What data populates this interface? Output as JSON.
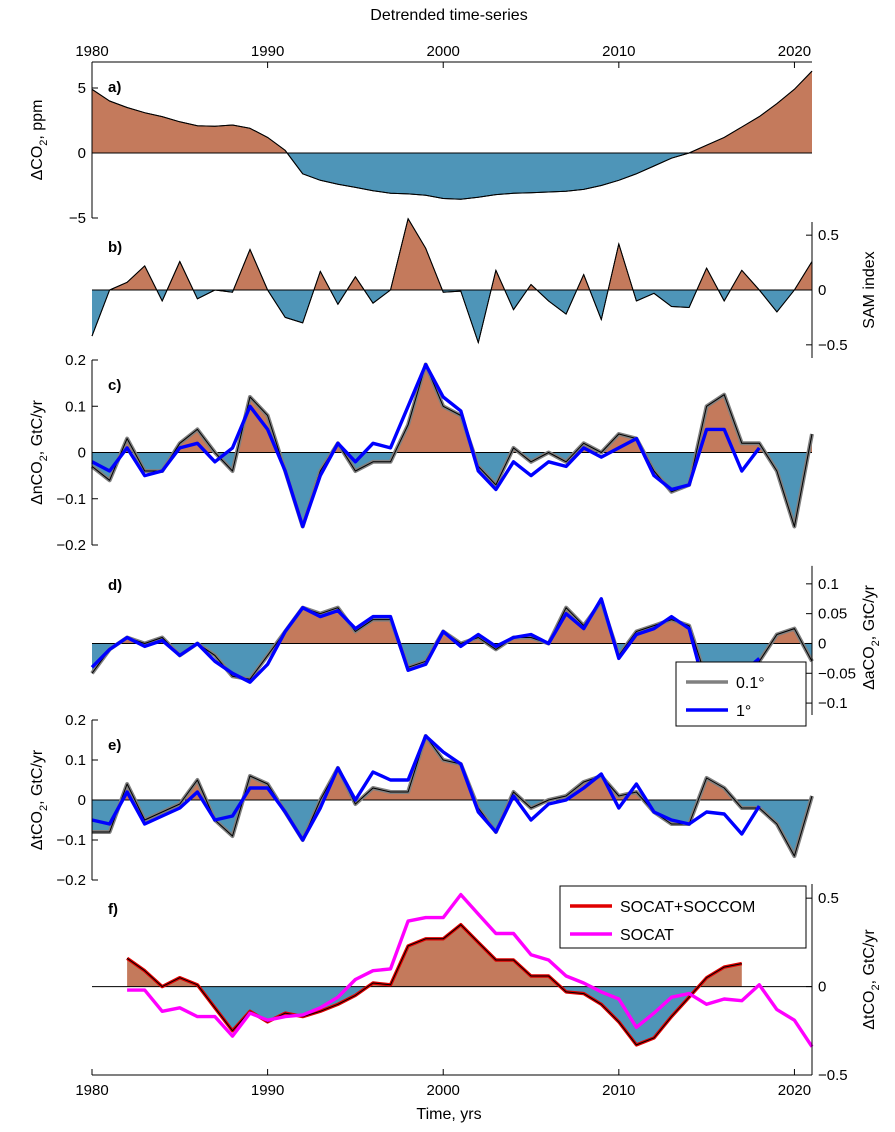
{
  "figure": {
    "title": "Detrended time-series",
    "xlabel": "Time, yrs"
  },
  "colors": {
    "positive": "#C47A5C",
    "negative": "#4E95B8",
    "blue": "#0000FF",
    "gray": "#808080",
    "red": "#E00000",
    "magenta": "#FF00FF",
    "black": "#000000"
  },
  "legends": {
    "res": [
      {
        "label": "0.1°",
        "color": "#808080"
      },
      {
        "label": "1°",
        "color": "#0000FF"
      }
    ],
    "socat": [
      {
        "label": "SOCAT+SOCCOM",
        "color": "#E00000"
      },
      {
        "label": "SOCAT",
        "color": "#FF00FF"
      }
    ]
  },
  "chart_data": [
    {
      "type": "area",
      "label": "a)",
      "ylabel_main": "ΔCO",
      "ylabel_sub": "2",
      "ylabel_tail": ", ppm",
      "yaxis_side": "left",
      "ylim": [
        -5,
        7
      ],
      "yticks": [
        5,
        0,
        -5
      ],
      "ytick_labels": [
        "5",
        "0",
        "−5"
      ],
      "xlim": [
        1980,
        2021
      ],
      "xticks": [
        1980,
        1990,
        2000,
        2010,
        2020
      ],
      "xtick_labels_top": [
        "1980",
        "1990",
        "2000",
        "2010",
        "2020"
      ],
      "series": [
        {
          "x": [
            1980,
            1981,
            1982,
            1983,
            1984,
            1985,
            1986,
            1987,
            1988,
            1989,
            1990,
            1991,
            1992,
            1993,
            1994,
            1995,
            1996,
            1997,
            1998,
            1999,
            2000,
            2001,
            2002,
            2003,
            2004,
            2005,
            2006,
            2007,
            2008,
            2009,
            2010,
            2011,
            2012,
            2013,
            2014,
            2015,
            2016,
            2017,
            2018,
            2019,
            2020,
            2021
          ],
          "values": [
            4.9,
            4.0,
            3.5,
            3.1,
            2.8,
            2.4,
            2.1,
            2.05,
            2.15,
            1.9,
            1.2,
            0.2,
            -1.6,
            -2.1,
            -2.4,
            -2.65,
            -2.9,
            -3.1,
            -3.15,
            -3.25,
            -3.5,
            -3.55,
            -3.4,
            -3.2,
            -3.1,
            -3.05,
            -3.0,
            -2.95,
            -2.8,
            -2.5,
            -2.1,
            -1.6,
            -1.0,
            -0.4,
            0.0,
            0.6,
            1.2,
            2.0,
            2.8,
            3.8,
            4.9,
            6.3
          ]
        }
      ]
    },
    {
      "type": "area",
      "label": "b)",
      "ylabel_main": "SAM index",
      "ylabel_sub": "",
      "ylabel_tail": "",
      "yaxis_side": "right",
      "ylim": [
        -0.62,
        0.62
      ],
      "yticks": [
        0.5,
        0,
        -0.5
      ],
      "ytick_labels": [
        "0.5",
        "0",
        "−0.5"
      ],
      "xlim": [
        1980,
        2021
      ],
      "series": [
        {
          "x": [
            1980,
            1981,
            1982,
            1983,
            1984,
            1985,
            1986,
            1987,
            1988,
            1989,
            1990,
            1991,
            1992,
            1993,
            1994,
            1995,
            1996,
            1997,
            1998,
            1999,
            2000,
            2001,
            2002,
            2003,
            2004,
            2005,
            2006,
            2007,
            2008,
            2009,
            2010,
            2011,
            2012,
            2013,
            2014,
            2015,
            2016,
            2017,
            2018,
            2019,
            2020,
            2021
          ],
          "values": [
            -0.42,
            0.0,
            0.07,
            0.22,
            -0.1,
            0.26,
            -0.08,
            0.0,
            -0.02,
            0.37,
            0.0,
            -0.25,
            -0.3,
            0.17,
            -0.13,
            0.12,
            -0.12,
            0.0,
            0.65,
            0.38,
            -0.02,
            -0.01,
            -0.48,
            0.18,
            -0.18,
            0.05,
            -0.1,
            -0.22,
            0.14,
            -0.27,
            0.42,
            -0.1,
            -0.03,
            -0.15,
            -0.16,
            0.2,
            -0.1,
            0.18,
            0.0,
            -0.2,
            0.0,
            0.26
          ]
        }
      ]
    },
    {
      "type": "area",
      "label": "c)",
      "ylabel_main": "ΔnCO",
      "ylabel_sub": "2",
      "ylabel_tail": ", GtC/yr",
      "yaxis_side": "left",
      "ylim": [
        -0.2,
        0.2
      ],
      "yticks": [
        0.2,
        0.1,
        0,
        -0.1,
        -0.2
      ],
      "ytick_labels": [
        "0.2",
        "0.1",
        "0",
        "−0.1",
        "−0.2"
      ],
      "xlim": [
        1980,
        2021
      ],
      "series": [
        {
          "name": "0.1°",
          "x": [
            1980,
            1981,
            1982,
            1983,
            1984,
            1985,
            1986,
            1987,
            1988,
            1989,
            1990,
            1991,
            1992,
            1993,
            1994,
            1995,
            1996,
            1997,
            1998,
            1999,
            2000,
            2001,
            2002,
            2003,
            2004,
            2005,
            2006,
            2007,
            2008,
            2009,
            2010,
            2011,
            2012,
            2013,
            2014,
            2015,
            2016,
            2017,
            2018,
            2019,
            2020,
            2021
          ],
          "values": [
            -0.03,
            -0.06,
            0.03,
            -0.04,
            -0.04,
            0.02,
            0.05,
            0.0,
            -0.04,
            0.12,
            0.08,
            -0.04,
            -0.16,
            -0.04,
            0.02,
            -0.04,
            -0.02,
            -0.02,
            0.06,
            0.19,
            0.1,
            0.08,
            -0.03,
            -0.07,
            0.01,
            -0.02,
            0.0,
            -0.02,
            0.02,
            0.0,
            0.04,
            0.03,
            -0.04,
            -0.085,
            -0.07,
            0.1,
            0.125,
            0.02,
            0.02,
            -0.04,
            -0.16,
            0.04
          ]
        },
        {
          "name": "1°",
          "x": [
            1980,
            1981,
            1982,
            1983,
            1984,
            1985,
            1986,
            1987,
            1988,
            1989,
            1990,
            1991,
            1992,
            1993,
            1994,
            1995,
            1996,
            1997,
            1998,
            1999,
            2000,
            2001,
            2002,
            2003,
            2004,
            2005,
            2006,
            2007,
            2008,
            2009,
            2010,
            2011,
            2012,
            2013,
            2014,
            2015,
            2016,
            2017,
            2018
          ],
          "values": [
            -0.02,
            -0.04,
            0.01,
            -0.05,
            -0.04,
            0.01,
            0.02,
            -0.02,
            0.01,
            0.1,
            0.05,
            -0.04,
            -0.16,
            -0.05,
            0.02,
            -0.02,
            0.02,
            0.01,
            0.1,
            0.19,
            0.12,
            0.09,
            -0.04,
            -0.08,
            -0.02,
            -0.05,
            -0.02,
            -0.03,
            0.01,
            -0.01,
            0.01,
            0.03,
            -0.05,
            -0.08,
            -0.07,
            0.05,
            0.05,
            -0.04,
            0.01
          ]
        }
      ]
    },
    {
      "type": "area",
      "label": "d)",
      "ylabel_main": "ΔaCO",
      "ylabel_sub": "2",
      "ylabel_tail": ", GtC/yr",
      "yaxis_side": "right",
      "ylim": [
        -0.12,
        0.14
      ],
      "yticks": [
        0.1,
        0.05,
        0,
        -0.05,
        -0.1
      ],
      "ytick_labels": [
        "0.1",
        "0.05",
        "0",
        "−0.05",
        "−0.1"
      ],
      "xlim": [
        1980,
        2021
      ],
      "series": [
        {
          "name": "0.1°",
          "x": [
            1980,
            1981,
            1982,
            1983,
            1984,
            1985,
            1986,
            1987,
            1988,
            1989,
            1990,
            1991,
            1992,
            1993,
            1994,
            1995,
            1996,
            1997,
            1998,
            1999,
            2000,
            2001,
            2002,
            2003,
            2004,
            2005,
            2006,
            2007,
            2008,
            2009,
            2010,
            2011,
            2012,
            2013,
            2014,
            2015,
            2016,
            2017,
            2018,
            2019,
            2020,
            2021
          ],
          "values": [
            -0.05,
            -0.01,
            0.01,
            0.0,
            0.01,
            -0.02,
            0.0,
            -0.02,
            -0.055,
            -0.06,
            -0.02,
            0.02,
            0.06,
            0.05,
            0.06,
            0.02,
            0.04,
            0.04,
            -0.04,
            -0.03,
            0.02,
            0.0,
            0.01,
            -0.01,
            0.01,
            0.01,
            0.0,
            0.06,
            0.03,
            0.07,
            -0.02,
            0.02,
            0.03,
            0.04,
            0.03,
            -0.06,
            -0.105,
            -0.07,
            -0.03,
            0.015,
            0.025,
            -0.03
          ]
        },
        {
          "name": "1°",
          "x": [
            1980,
            1981,
            1982,
            1983,
            1984,
            1985,
            1986,
            1987,
            1988,
            1989,
            1990,
            1991,
            1992,
            1993,
            1994,
            1995,
            1996,
            1997,
            1998,
            1999,
            2000,
            2001,
            2002,
            2003,
            2004,
            2005,
            2006,
            2007,
            2008,
            2009,
            2010,
            2011,
            2012,
            2013,
            2014,
            2015,
            2016,
            2017,
            2018
          ],
          "values": [
            -0.04,
            -0.01,
            0.01,
            -0.005,
            0.005,
            -0.02,
            0.0,
            -0.03,
            -0.05,
            -0.065,
            -0.035,
            0.02,
            0.06,
            0.045,
            0.055,
            0.025,
            0.045,
            0.045,
            -0.045,
            -0.035,
            0.02,
            -0.005,
            0.015,
            -0.005,
            0.01,
            0.015,
            0.0,
            0.05,
            0.025,
            0.075,
            -0.025,
            0.015,
            0.025,
            0.045,
            0.025,
            -0.085,
            -0.09,
            -0.05,
            -0.025
          ]
        }
      ]
    },
    {
      "type": "area",
      "label": "e)",
      "ylabel_main": "ΔtCO",
      "ylabel_sub": "2",
      "ylabel_tail": ", GtC/yr",
      "yaxis_side": "left",
      "ylim": [
        -0.2,
        0.2
      ],
      "yticks": [
        0.2,
        0.1,
        0,
        -0.1,
        -0.2
      ],
      "ytick_labels": [
        "0.2",
        "0.1",
        "0",
        "−0.1",
        "−0.2"
      ],
      "xlim": [
        1980,
        2021
      ],
      "series": [
        {
          "name": "0.1°",
          "x": [
            1980,
            1981,
            1982,
            1983,
            1984,
            1985,
            1986,
            1987,
            1988,
            1989,
            1990,
            1991,
            1992,
            1993,
            1994,
            1995,
            1996,
            1997,
            1998,
            1999,
            2000,
            2001,
            2002,
            2003,
            2004,
            2005,
            2006,
            2007,
            2008,
            2009,
            2010,
            2011,
            2012,
            2013,
            2014,
            2015,
            2016,
            2017,
            2018,
            2019,
            2020,
            2021
          ],
          "values": [
            -0.08,
            -0.08,
            0.04,
            -0.05,
            -0.03,
            -0.01,
            0.05,
            -0.05,
            -0.09,
            0.06,
            0.04,
            -0.03,
            -0.1,
            0.0,
            0.08,
            -0.01,
            0.03,
            0.02,
            0.02,
            0.16,
            0.1,
            0.09,
            -0.02,
            -0.08,
            0.02,
            -0.02,
            0.0,
            0.01,
            0.045,
            0.06,
            0.01,
            0.02,
            -0.03,
            -0.06,
            -0.06,
            0.055,
            0.03,
            -0.02,
            -0.02,
            -0.06,
            -0.14,
            0.01
          ]
        },
        {
          "name": "1°",
          "x": [
            1980,
            1981,
            1982,
            1983,
            1984,
            1985,
            1986,
            1987,
            1988,
            1989,
            1990,
            1991,
            1992,
            1993,
            1994,
            1995,
            1996,
            1997,
            1998,
            1999,
            2000,
            2001,
            2002,
            2003,
            2004,
            2005,
            2006,
            2007,
            2008,
            2009,
            2010,
            2011,
            2012,
            2013,
            2014,
            2015,
            2016,
            2017,
            2018
          ],
          "values": [
            -0.05,
            -0.06,
            0.02,
            -0.06,
            -0.04,
            -0.02,
            0.02,
            -0.05,
            -0.04,
            0.03,
            0.03,
            -0.03,
            -0.1,
            -0.02,
            0.08,
            0.0,
            0.07,
            0.05,
            0.05,
            0.16,
            0.12,
            0.09,
            -0.03,
            -0.08,
            0.01,
            -0.05,
            -0.01,
            0.0,
            0.03,
            0.065,
            -0.02,
            0.04,
            -0.03,
            -0.05,
            -0.06,
            -0.03,
            -0.035,
            -0.085,
            -0.015
          ]
        }
      ]
    },
    {
      "type": "area",
      "label": "f)",
      "ylabel_main": "ΔtCO",
      "ylabel_sub": "2",
      "ylabel_tail": ", GtC/yr",
      "yaxis_side": "right",
      "ylim": [
        -0.5,
        0.58
      ],
      "yticks": [
        0.5,
        0,
        -0.5
      ],
      "ytick_labels": [
        "0.5",
        "0",
        "−0.5"
      ],
      "xlim": [
        1980,
        2021
      ],
      "xticks": [
        1980,
        1990,
        2000,
        2010,
        2020
      ],
      "xtick_labels_bottom": [
        "1980",
        "1990",
        "2000",
        "2010",
        "2020"
      ],
      "series": [
        {
          "name": "SOCAT+SOCCOM",
          "x": [
            1982,
            1983,
            1984,
            1985,
            1986,
            1987,
            1988,
            1989,
            1990,
            1991,
            1992,
            1993,
            1994,
            1995,
            1996,
            1997,
            1998,
            1999,
            2000,
            2001,
            2002,
            2003,
            2004,
            2005,
            2006,
            2007,
            2008,
            2009,
            2010,
            2011,
            2012,
            2013,
            2014,
            2015,
            2016,
            2017
          ],
          "values": [
            0.16,
            0.09,
            0.0,
            0.05,
            0.01,
            -0.12,
            -0.25,
            -0.14,
            -0.2,
            -0.15,
            -0.17,
            -0.14,
            -0.1,
            -0.05,
            0.02,
            0.01,
            0.23,
            0.27,
            0.27,
            0.35,
            0.25,
            0.15,
            0.15,
            0.06,
            0.06,
            -0.03,
            -0.04,
            -0.1,
            -0.2,
            -0.33,
            -0.29,
            -0.17,
            -0.06,
            0.05,
            0.11,
            0.13
          ]
        },
        {
          "name": "SOCAT",
          "x": [
            1982,
            1983,
            1984,
            1985,
            1986,
            1987,
            1988,
            1989,
            1990,
            1991,
            1992,
            1993,
            1994,
            1995,
            1996,
            1997,
            1998,
            1999,
            2000,
            2001,
            2002,
            2003,
            2004,
            2005,
            2006,
            2007,
            2008,
            2009,
            2010,
            2011,
            2012,
            2013,
            2014,
            2015,
            2016,
            2017,
            2018,
            2019,
            2020,
            2021
          ],
          "values": [
            -0.02,
            -0.02,
            -0.14,
            -0.12,
            -0.17,
            -0.17,
            -0.28,
            -0.15,
            -0.19,
            -0.17,
            -0.16,
            -0.12,
            -0.06,
            0.04,
            0.09,
            0.1,
            0.37,
            0.39,
            0.39,
            0.52,
            0.41,
            0.3,
            0.3,
            0.18,
            0.15,
            0.06,
            0.02,
            -0.03,
            -0.07,
            -0.23,
            -0.15,
            -0.06,
            -0.04,
            -0.1,
            -0.07,
            -0.08,
            0.01,
            -0.13,
            -0.19,
            -0.34
          ]
        }
      ]
    }
  ]
}
